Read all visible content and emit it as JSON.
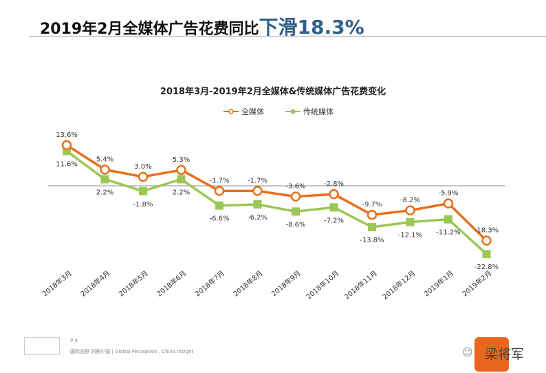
{
  "header": {
    "title": "2019年2月全媒体广告花费同比",
    "highlight": "下滑18.3%"
  },
  "chart_data": {
    "type": "line",
    "title": "2018年3月-2019年2月全媒体&传统媒体广告花费变化",
    "categories": [
      "2018年3月",
      "2018年4月",
      "2018年5月",
      "2018年6月",
      "2018年7月",
      "2018年8月",
      "2018年9月",
      "2018年10月",
      "2018年11月",
      "2018年12月",
      "2019年1月",
      "2019年2月"
    ],
    "series": [
      {
        "name": "全媒体",
        "color": "#e8701a",
        "values": [
          13.6,
          5.4,
          3.0,
          5.3,
          -1.7,
          -1.7,
          -3.6,
          -2.8,
          -9.7,
          -8.2,
          -5.9,
          -18.3
        ],
        "labels": [
          "13.6%",
          "5.4%",
          "3.0%",
          "5.3%",
          "-1.7%",
          "-1.7%",
          "-3.6%",
          "-2.8%",
          "-9.7%",
          "-8.2%",
          "-5.9%",
          "-18.3%"
        ]
      },
      {
        "name": "传统媒体",
        "color": "#9bc757",
        "values": [
          11.6,
          2.2,
          -1.8,
          2.2,
          -6.6,
          -6.2,
          -8.6,
          -7.2,
          -13.8,
          -12.1,
          -11.2,
          -22.8
        ],
        "labels": [
          "11.6%",
          "2.2%",
          "-1.8%",
          "2.2%",
          "-6.6%",
          "-6.2%",
          "-8.6%",
          "-7.2%",
          "-13.8%",
          "-12.1%",
          "-11.2%",
          "-22.8%"
        ]
      }
    ],
    "legend": "top",
    "grid": false
  },
  "footer": {
    "page": "P 4",
    "tagline": "国际视野 洞察中国 | Global Perception , China Insight",
    "brand": "梁将军"
  }
}
